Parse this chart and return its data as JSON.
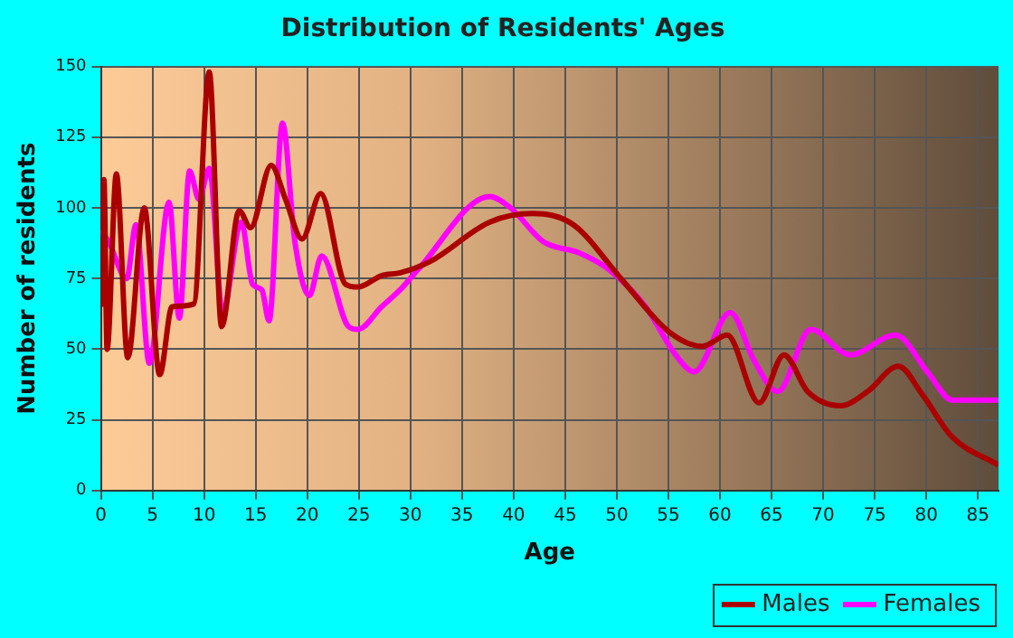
{
  "chart_data": {
    "type": "line",
    "title": "Distribution of Residents' Ages",
    "xlabel": "Age",
    "ylabel": "Number of residents",
    "xlim": [
      0,
      87
    ],
    "xticks": [
      0,
      5,
      10,
      15,
      20,
      25,
      30,
      35,
      40,
      45,
      50,
      55,
      60,
      65,
      70,
      75,
      80,
      85
    ],
    "ylim": [
      0,
      150
    ],
    "yticks": [
      0,
      25,
      50,
      75,
      100,
      125,
      150
    ],
    "grid": true,
    "legend": "bottom right",
    "marker": "none",
    "line_style": "solid",
    "series": [
      {
        "name": "Males",
        "color": "#aa0000",
        "x": [
          0,
          0.3,
          0.6,
          1.5,
          2.6,
          4.2,
          5.7,
          6.9,
          9,
          10.5,
          11.7,
          13.4,
          14.5,
          16.5,
          17.9,
          19.5,
          21.3,
          23.7,
          24.9,
          27.2,
          29,
          31.9,
          37.7,
          41.8,
          45.8,
          50.4,
          55.1,
          58.3,
          60.7,
          63.8,
          66.2,
          68.5,
          71.7,
          74.3,
          77.3,
          79.6,
          82.5,
          87
        ],
        "values": [
          65,
          110,
          50,
          112,
          47,
          100,
          41,
          65,
          66,
          148,
          58,
          99,
          93,
          115,
          103,
          89,
          105,
          73,
          72,
          76,
          77,
          81,
          95,
          98,
          94,
          75,
          56,
          51,
          55,
          31,
          48,
          35,
          30,
          35,
          44,
          34,
          19,
          9
        ]
      },
      {
        "name": "Females",
        "color": "#ff00ff",
        "x": [
          0,
          0.75,
          2.5,
          3.4,
          4.7,
          6.6,
          7.6,
          8.6,
          9.5,
          10.5,
          11.8,
          13.6,
          14.7,
          15.6,
          16.3,
          17.6,
          18.8,
          20.2,
          21.4,
          24,
          24.9,
          27.2,
          29,
          30.7,
          37.7,
          39.7,
          42.9,
          46.4,
          49.3,
          52.8,
          55.7,
          57.5,
          61,
          63.3,
          65.6,
          68.8,
          72.6,
          77,
          80.2,
          82.5,
          87
        ],
        "values": [
          92,
          88,
          75,
          94,
          45,
          102,
          61,
          113,
          103,
          114,
          63,
          95,
          73,
          71,
          60,
          130,
          88,
          69,
          83,
          58,
          57,
          65,
          71,
          78,
          104,
          100,
          88,
          84,
          78,
          65,
          48,
          42,
          63,
          46,
          35,
          57,
          48,
          55,
          41.5,
          32,
          32
        ]
      }
    ]
  }
}
